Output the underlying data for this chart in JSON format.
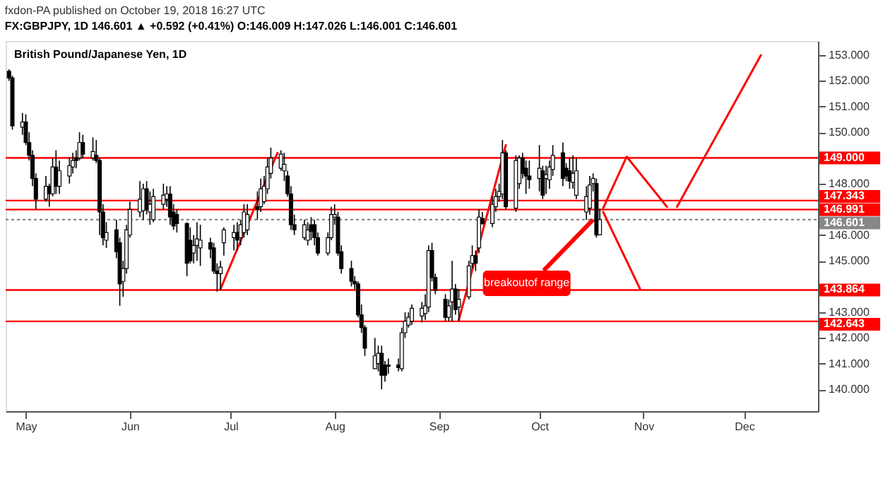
{
  "chart_data": {
    "type": "candlestick",
    "title": "fxdon-PA published on October 19, 2018 16:27 UTC",
    "subtitle": "FX:GBPJPY, 1D  146.601 ▲ +0.592 (+0.41%) O:146.009 H:147.026 L:146.001 C:146.601",
    "color": "#000000",
    "x": [
      "2018-04-26",
      "2018-04-27",
      "2018-04-30",
      "2018-05-01",
      "2018-05-02",
      "2018-05-03",
      "2018-05-04",
      "2018-05-07",
      "2018-05-08",
      "2018-05-09",
      "2018-05-10",
      "2018-05-11",
      "2018-05-14",
      "2018-05-15",
      "2018-05-16",
      "2018-05-17",
      "2018-05-18",
      "2018-05-21",
      "2018-05-22",
      "2018-05-23",
      "2018-05-24",
      "2018-05-25",
      "2018-05-28",
      "2018-05-29",
      "2018-05-30",
      "2018-05-31",
      "2018-06-01",
      "2018-06-04",
      "2018-06-05",
      "2018-06-06",
      "2018-06-07",
      "2018-06-08",
      "2018-06-11",
      "2018-06-12",
      "2018-06-13",
      "2018-06-14",
      "2018-06-15",
      "2018-06-18",
      "2018-06-19",
      "2018-06-20",
      "2018-06-21",
      "2018-06-22",
      "2018-06-25",
      "2018-06-26",
      "2018-06-27",
      "2018-06-28",
      "2018-06-29",
      "2018-07-02",
      "2018-07-03",
      "2018-07-04",
      "2018-07-05",
      "2018-07-06",
      "2018-07-09",
      "2018-07-10",
      "2018-07-11",
      "2018-07-12",
      "2018-07-13",
      "2018-07-16",
      "2018-07-17",
      "2018-07-18",
      "2018-07-19",
      "2018-07-20",
      "2018-07-23",
      "2018-07-24",
      "2018-07-25",
      "2018-07-26",
      "2018-07-27",
      "2018-07-30",
      "2018-07-31",
      "2018-08-01",
      "2018-08-02",
      "2018-08-03",
      "2018-08-06",
      "2018-08-07",
      "2018-08-08",
      "2018-08-09",
      "2018-08-10",
      "2018-08-13",
      "2018-08-14",
      "2018-08-15",
      "2018-08-16",
      "2018-08-17",
      "2018-08-20",
      "2018-08-21",
      "2018-08-22",
      "2018-08-23",
      "2018-08-24",
      "2018-08-27",
      "2018-08-28",
      "2018-08-29",
      "2018-08-30",
      "2018-08-31",
      "2018-09-03",
      "2018-09-04",
      "2018-09-05",
      "2018-09-06",
      "2018-09-07",
      "2018-09-10",
      "2018-09-11",
      "2018-09-12",
      "2018-09-13",
      "2018-09-14",
      "2018-09-17",
      "2018-09-18",
      "2018-09-19",
      "2018-09-20",
      "2018-09-21",
      "2018-09-24",
      "2018-09-25",
      "2018-09-26",
      "2018-09-27",
      "2018-09-28",
      "2018-10-01",
      "2018-10-02",
      "2018-10-03",
      "2018-10-04",
      "2018-10-05",
      "2018-10-08",
      "2018-10-09",
      "2018-10-10",
      "2018-10-11",
      "2018-10-12",
      "2018-10-15",
      "2018-10-16",
      "2018-10-17",
      "2018-10-18",
      "2018-10-19"
    ],
    "ohlc": [
      [
        152.37,
        152.45,
        152.0,
        152.11
      ],
      [
        152.11,
        152.2,
        150.1,
        150.25
      ],
      [
        150.2,
        150.75,
        149.9,
        150.4
      ],
      [
        150.4,
        150.7,
        149.5,
        149.6
      ],
      [
        149.6,
        150.0,
        148.9,
        149.1
      ],
      [
        149.1,
        149.3,
        147.9,
        148.2
      ],
      [
        148.2,
        148.4,
        147.0,
        147.4
      ],
      [
        147.4,
        148.3,
        147.3,
        147.9
      ],
      [
        147.9,
        148.0,
        147.1,
        147.6
      ],
      [
        147.6,
        149.0,
        147.5,
        148.65
      ],
      [
        148.65,
        149.3,
        147.6,
        147.9
      ],
      [
        147.9,
        148.9,
        147.6,
        148.5
      ],
      [
        148.3,
        149.0,
        148.0,
        148.7
      ],
      [
        148.65,
        149.2,
        148.4,
        148.9
      ],
      [
        149.0,
        149.3,
        148.6,
        148.9
      ],
      [
        149.0,
        150.0,
        148.9,
        149.6
      ],
      [
        149.6,
        149.9,
        149.0,
        149.15
      ],
      [
        149.0,
        149.8,
        148.9,
        149.25
      ],
      [
        149.1,
        149.7,
        148.8,
        148.9
      ],
      [
        148.9,
        149.0,
        146.0,
        146.9
      ],
      [
        146.9,
        147.2,
        145.6,
        145.9
      ],
      [
        145.8,
        146.5,
        145.5,
        146.1
      ],
      [
        146.2,
        146.6,
        145.1,
        145.35
      ],
      [
        145.7,
        145.9,
        143.25,
        144.1
      ],
      [
        144.2,
        145.0,
        143.6,
        144.7
      ],
      [
        144.7,
        146.4,
        144.5,
        146.2
      ],
      [
        146.0,
        147.3,
        145.9,
        147.0
      ],
      [
        146.9,
        148.1,
        146.7,
        147.4
      ],
      [
        146.95,
        148.0,
        146.6,
        147.8
      ],
      [
        147.8,
        148.1,
        146.8,
        147.0
      ],
      [
        146.9,
        147.7,
        146.4,
        147.2
      ],
      [
        146.6,
        147.8,
        146.5,
        147.5
      ],
      [
        147.2,
        148.0,
        147.0,
        147.55
      ],
      [
        147.4,
        147.9,
        147.1,
        147.6
      ],
      [
        147.6,
        147.9,
        146.4,
        146.7
      ],
      [
        146.9,
        147.2,
        146.2,
        146.35
      ],
      [
        146.8,
        147.0,
        146.1,
        146.45
      ],
      [
        146.45,
        146.5,
        144.4,
        144.9
      ],
      [
        145.8,
        146.3,
        144.9,
        145.0
      ],
      [
        145.3,
        146.0,
        144.9,
        145.6
      ],
      [
        145.6,
        146.5,
        145.0,
        145.85
      ],
      [
        145.5,
        146.4,
        144.8,
        145.8
      ],
      [
        145.7,
        145.9,
        145.1,
        145.45
      ],
      [
        145.5,
        145.7,
        144.5,
        144.6
      ],
      [
        144.6,
        144.9,
        143.8,
        144.5
      ],
      [
        144.5,
        145.0,
        143.85,
        144.75
      ],
      [
        145.7,
        146.3,
        145.2,
        146.2
      ],
      [
        145.9,
        146.4,
        145.4,
        146.1
      ],
      [
        146.1,
        146.5,
        145.4,
        145.8
      ],
      [
        145.9,
        146.6,
        145.6,
        146.4
      ],
      [
        146.1,
        147.2,
        145.9,
        146.9
      ],
      [
        146.2,
        147.2,
        146.0,
        146.8
      ],
      [
        147.1,
        147.7,
        146.6,
        147.0
      ],
      [
        147.1,
        148.2,
        146.9,
        147.8
      ],
      [
        147.3,
        148.3,
        147.2,
        147.9
      ],
      [
        147.8,
        149.0,
        147.6,
        148.65
      ],
      [
        148.4,
        149.4,
        148.2,
        149.0
      ],
      [
        148.6,
        149.3,
        148.5,
        149.15
      ],
      [
        148.5,
        149.2,
        148.1,
        148.75
      ],
      [
        148.3,
        148.5,
        147.5,
        147.6
      ],
      [
        147.6,
        147.9,
        146.2,
        146.4
      ],
      [
        146.4,
        146.8,
        146.0,
        146.2
      ],
      [
        145.9,
        146.6,
        145.8,
        146.4
      ],
      [
        145.8,
        146.5,
        145.6,
        146.2
      ],
      [
        146.4,
        146.7,
        145.8,
        146.15
      ],
      [
        146.4,
        146.6,
        145.6,
        145.9
      ],
      [
        145.9,
        146.1,
        145.2,
        145.3
      ],
      [
        145.3,
        146.1,
        145.2,
        145.9
      ],
      [
        145.9,
        147.1,
        145.8,
        146.8
      ],
      [
        146.7,
        147.2,
        146.4,
        146.8
      ],
      [
        146.7,
        146.9,
        145.2,
        145.3
      ],
      [
        145.35,
        145.6,
        144.5,
        144.7
      ],
      [
        144.7,
        145.0,
        144.0,
        144.2
      ],
      [
        144.2,
        144.4,
        143.9,
        144.1
      ],
      [
        144.1,
        144.2,
        142.8,
        142.9
      ],
      [
        142.9,
        143.3,
        142.2,
        142.4
      ],
      [
        142.4,
        142.5,
        141.3,
        141.6
      ],
      [
        140.8,
        142.0,
        140.8,
        141.3
      ],
      [
        141.0,
        141.7,
        140.7,
        141.4
      ],
      [
        141.4,
        141.7,
        140.0,
        140.55
      ],
      [
        140.95,
        141.1,
        140.3,
        140.55
      ],
      [
        140.95,
        141.2,
        140.6,
        140.9
      ],
      [
        140.95,
        141.2,
        140.7,
        140.85
      ],
      [
        140.8,
        142.4,
        140.7,
        142.2
      ],
      [
        142.2,
        143.0,
        142.0,
        142.65
      ],
      [
        142.5,
        143.0,
        142.4,
        142.8
      ],
      [
        142.65,
        143.3,
        142.5,
        143.15
      ],
      [
        142.85,
        143.4,
        142.6,
        143.15
      ],
      [
        142.95,
        143.7,
        142.7,
        143.25
      ],
      [
        143.2,
        145.6,
        143.0,
        145.4
      ],
      [
        145.4,
        145.7,
        144.2,
        144.35
      ],
      [
        144.35,
        144.5,
        143.7,
        143.85
      ],
      [
        143.5,
        143.7,
        142.65,
        142.8
      ],
      [
        142.8,
        143.5,
        142.65,
        143.25
      ],
      [
        143.4,
        145.0,
        142.65,
        143.9
      ],
      [
        143.9,
        144.1,
        142.9,
        143.1
      ],
      [
        143.2,
        143.9,
        142.65,
        143.5
      ],
      [
        143.6,
        145.0,
        143.5,
        144.8
      ],
      [
        144.9,
        145.6,
        144.7,
        145.2
      ],
      [
        145.2,
        145.4,
        144.6,
        144.9
      ],
      [
        145.5,
        147.0,
        145.3,
        146.7
      ],
      [
        146.65,
        146.9,
        146.4,
        146.45
      ],
      [
        146.45,
        147.5,
        146.3,
        147.2
      ],
      [
        147.1,
        147.8,
        146.9,
        147.5
      ],
      [
        147.5,
        148.0,
        147.3,
        147.7
      ],
      [
        147.6,
        149.7,
        147.4,
        149.2
      ],
      [
        149.2,
        149.3,
        147.0,
        147.1
      ],
      [
        147.05,
        149.1,
        146.9,
        148.9
      ],
      [
        148.0,
        149.1,
        147.8,
        149.0
      ],
      [
        149.0,
        149.2,
        148.2,
        148.4
      ],
      [
        148.6,
        148.9,
        147.6,
        148.3
      ],
      [
        148.3,
        148.9,
        147.8,
        148.15
      ],
      [
        148.2,
        149.5,
        147.7,
        148.6
      ],
      [
        148.5,
        148.7,
        147.4,
        147.55
      ],
      [
        148.2,
        148.7,
        147.6,
        148.35
      ],
      [
        148.15,
        148.9,
        147.8,
        148.65
      ],
      [
        148.55,
        149.5,
        148.3,
        149.1
      ],
      [
        149.2,
        149.6,
        147.9,
        148.2
      ],
      [
        148.6,
        148.8,
        148.1,
        148.3
      ],
      [
        148.5,
        149.0,
        147.8,
        148.1
      ],
      [
        148.05,
        149.1,
        147.8,
        148.4
      ],
      [
        147.55,
        149.0,
        147.4,
        148.5
      ],
      [
        146.9,
        147.9,
        146.6,
        147.5
      ],
      [
        147.05,
        148.3,
        146.8,
        147.95
      ],
      [
        148.0,
        148.4,
        147.7,
        148.2
      ],
      [
        148.0,
        148.2,
        145.9,
        146.0
      ],
      [
        146.009,
        147.026,
        146.001,
        146.601
      ]
    ],
    "series": [
      {
        "type": "line",
        "color": "#ff0000",
        "x": [
          "2018-06-28",
          "2018-07-15"
        ],
        "values": [
          143.9,
          149.2
        ]
      },
      {
        "type": "line",
        "color": "#ff0000",
        "x": [
          "2018-09-07",
          "2018-09-21"
        ],
        "values": [
          142.7,
          149.5
        ]
      },
      {
        "type": "line",
        "color": "#ff0000",
        "x": [
          "2018-10-20",
          "2018-10-27",
          "2018-11-08"
        ],
        "values": [
          147.05,
          149.05,
          147.1
        ]
      },
      {
        "type": "line",
        "color": "#ff0000",
        "x": [
          "2018-11-11",
          "2018-12-06"
        ],
        "values": [
          147.1,
          153.0
        ]
      },
      {
        "type": "line",
        "color": "#ff0000",
        "x": [
          "2018-10-20",
          "2018-10-31"
        ],
        "values": [
          146.9,
          143.9
        ]
      }
    ],
    "xlim": [
      "2018-04-25",
      "2018-12-23"
    ],
    "xticks": [
      {
        "value": "2018-05-01",
        "label": "May"
      },
      {
        "value": "2018-06-01",
        "label": "Jun"
      },
      {
        "value": "2018-07-01",
        "label": "Jul"
      },
      {
        "value": "2018-08-01",
        "label": "Aug"
      },
      {
        "value": "2018-09-01",
        "label": "Sep"
      },
      {
        "value": "2018-10-01",
        "label": "Oct"
      },
      {
        "value": "2018-11-01",
        "label": "Nov"
      },
      {
        "value": "2018-12-01",
        "label": "Dec"
      }
    ],
    "ylim": [
      139.15,
      153.55
    ],
    "yticks": [
      {
        "value": 140,
        "label": "140.000"
      },
      {
        "value": 141,
        "label": "141.000"
      },
      {
        "value": 142,
        "label": "142.000"
      },
      {
        "value": 143,
        "label": "143.000"
      },
      {
        "value": 145,
        "label": "145.000"
      },
      {
        "value": 146,
        "label": "146.000"
      },
      {
        "value": 148,
        "label": "148.000"
      },
      {
        "value": 150,
        "label": "150.000"
      },
      {
        "value": 151,
        "label": "151.000"
      },
      {
        "value": 152,
        "label": "152.000"
      },
      {
        "value": 153,
        "label": "153.000"
      }
    ],
    "ref_lines": [
      {
        "axis": "y",
        "value": 149.0,
        "label": "149.000",
        "color": "#ff0000"
      },
      {
        "axis": "y",
        "value": 147.343,
        "label": "147.343",
        "color": "#ff0000"
      },
      {
        "axis": "y",
        "value": 146.991,
        "label": "146.991",
        "color": "#ff0000"
      },
      {
        "axis": "y",
        "value": 146.601,
        "label": "146.601",
        "color": "#888888",
        "line_style": "dotted"
      },
      {
        "axis": "y",
        "value": 143.864,
        "label": "143.864",
        "color": "#ff0000"
      },
      {
        "axis": "y",
        "value": 142.643,
        "label": "142.643",
        "color": "#ff0000"
      }
    ],
    "annotations": [
      "British Pound/Japanese Yen, 1D",
      {
        "text": "breakoutof range",
        "x": "2018-10-17",
        "y": 146.6
      }
    ]
  }
}
